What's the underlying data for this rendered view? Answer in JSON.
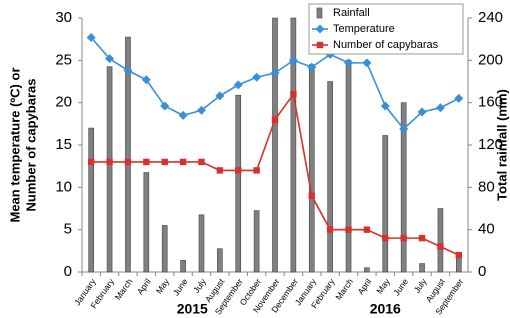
{
  "chart_data": {
    "type": "bar-line",
    "categories": [
      "January",
      "February",
      "March",
      "April",
      "May",
      "June",
      "July",
      "August",
      "September",
      "October",
      "November",
      "December",
      "January",
      "February",
      "March",
      "April",
      "May",
      "June",
      "July",
      "August",
      "September"
    ],
    "years": [
      "2015",
      "2016"
    ],
    "series": [
      {
        "name": "Rainfall",
        "type": "bar",
        "axis": "y2",
        "color": "#808080",
        "values": [
          136,
          194,
          222,
          94,
          44,
          11,
          54,
          22,
          167,
          58,
          240,
          240,
          196,
          180,
          200,
          4,
          129,
          160,
          8,
          60,
          16
        ]
      },
      {
        "name": "Temperature",
        "type": "line",
        "axis": "y",
        "color": "#3a8fd8",
        "marker": "diamond",
        "values": [
          27.7,
          25.2,
          23.8,
          22.7,
          19.6,
          18.5,
          19.1,
          20.8,
          22.1,
          23.0,
          23.5,
          25.0,
          24.2,
          25.7,
          24.7,
          24.7,
          19.6,
          16.9,
          18.9,
          19.4,
          20.5
        ]
      },
      {
        "name": "Number of capybaras",
        "type": "line",
        "axis": "y",
        "color": "#d9302c",
        "marker": "square",
        "values": [
          13,
          13,
          13,
          13,
          13,
          13,
          13,
          12,
          12,
          12,
          18,
          21,
          9,
          5,
          5,
          5,
          4,
          4,
          4,
          3,
          2
        ]
      }
    ],
    "y_label": [
      "Mean temperature (ºC) or",
      "Number of capybaras"
    ],
    "y2_label": "Total rainfall (mm)",
    "ylim": [
      0,
      30
    ],
    "yticks": [
      0,
      5,
      10,
      15,
      20,
      25,
      30
    ],
    "y2lim": [
      0,
      240
    ],
    "y2ticks": [
      0,
      40,
      80,
      120,
      160,
      200,
      240
    ],
    "legend": "top-right"
  }
}
